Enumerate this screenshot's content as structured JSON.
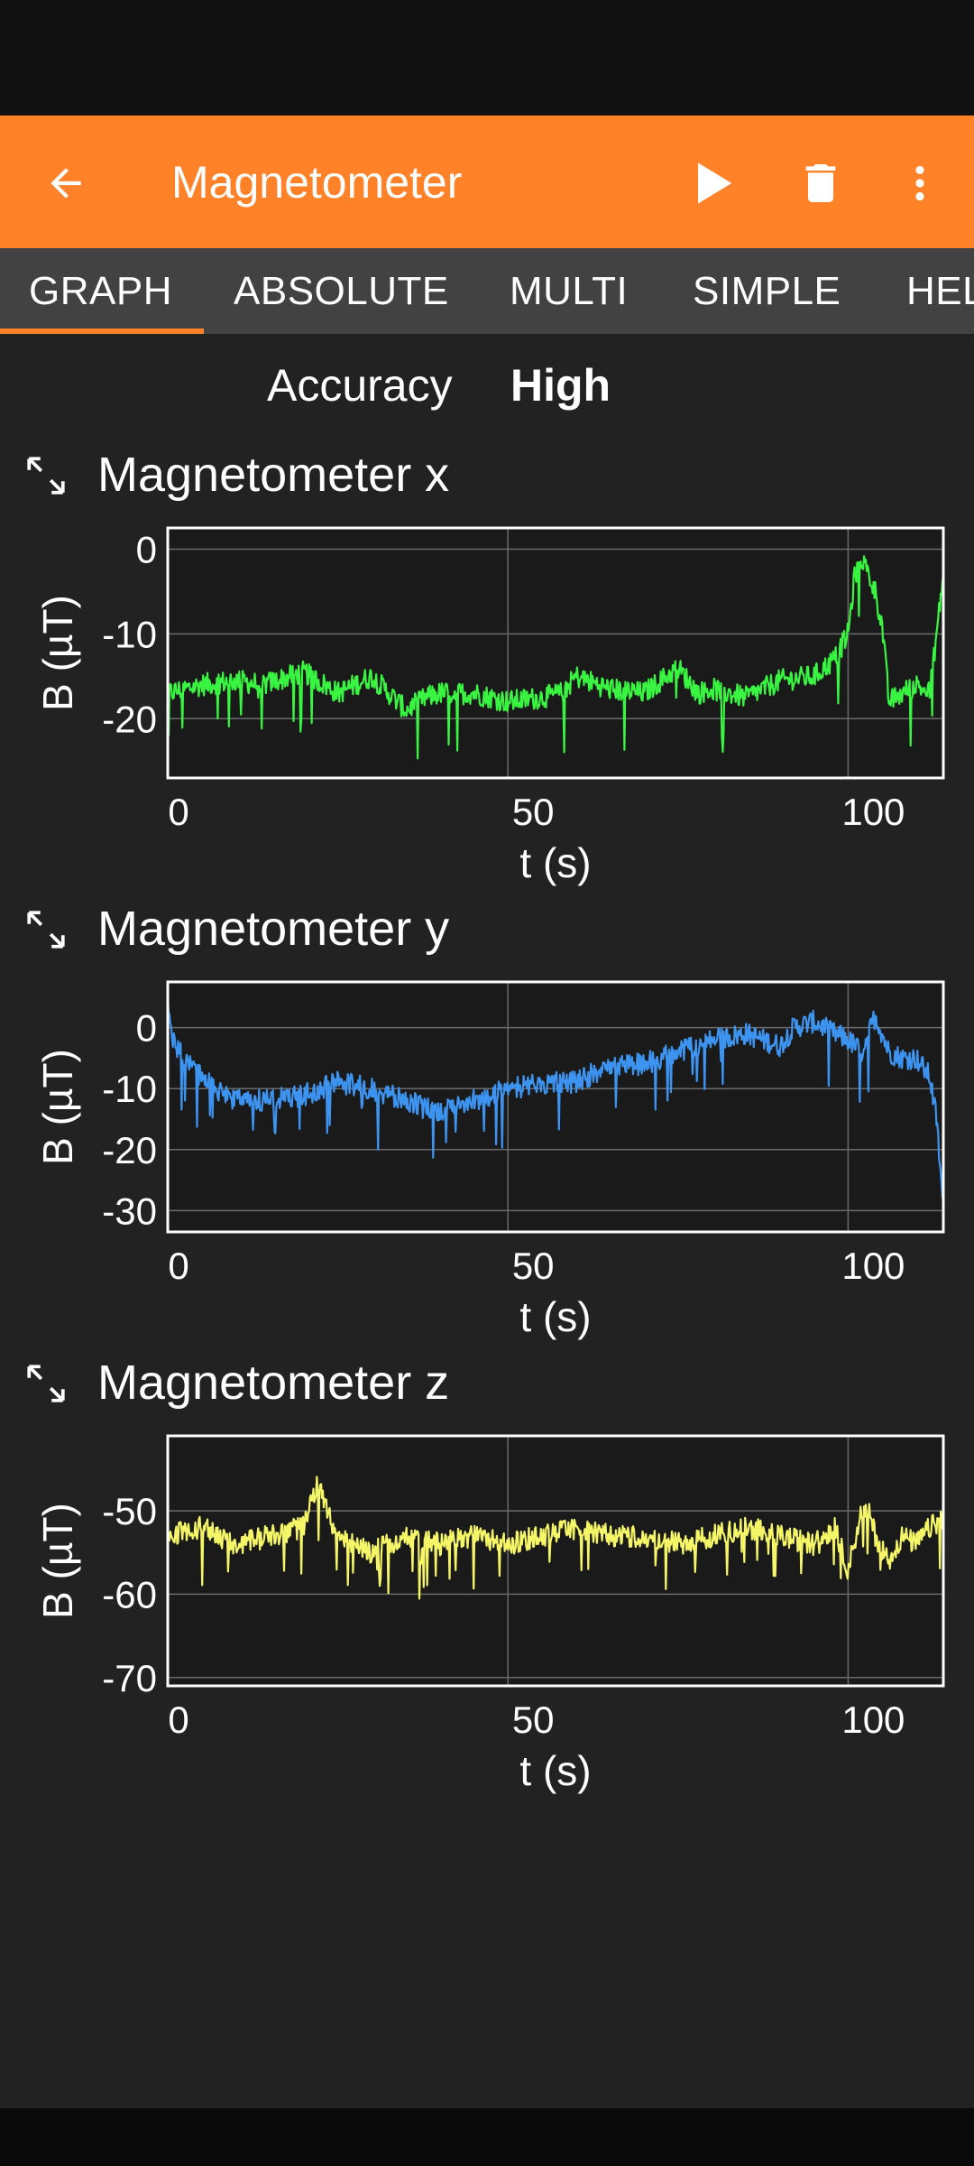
{
  "app_bar": {
    "title": "Magnetometer",
    "back_icon": "arrow-left-icon",
    "play_icon": "play-icon",
    "trash_icon": "trash-icon",
    "more_icon": "more-vert-icon",
    "color": "#ff8128"
  },
  "tabs": [
    {
      "label": "GRAPH",
      "selected": true
    },
    {
      "label": "ABSOLUTE"
    },
    {
      "label": "MULTI"
    },
    {
      "label": "SIMPLE"
    },
    {
      "label": "HEL"
    }
  ],
  "accuracy": {
    "label": "Accuracy",
    "value": "High"
  },
  "chart_data": [
    {
      "type": "line",
      "title": "Magnetometer x",
      "xlabel": "t (s)",
      "ylabel": "B (µT)",
      "xlim": [
        0,
        114
      ],
      "ylim": [
        -27,
        2.5
      ],
      "xticks": [
        0,
        50,
        100
      ],
      "yticks": [
        0,
        -10,
        -20
      ],
      "color": "#39f542",
      "grid": true,
      "series": [
        {
          "x": [
            0,
            5,
            10,
            14,
            20,
            25,
            30,
            35,
            38,
            40,
            45,
            50,
            55,
            58,
            60,
            65,
            70,
            75,
            78,
            80,
            85,
            90,
            95,
            98,
            100,
            101,
            102,
            103,
            104,
            105,
            106,
            108,
            110,
            112,
            114
          ],
          "y": [
            -17,
            -16,
            -15.5,
            -16,
            -14.5,
            -17,
            -15,
            -19,
            -17.5,
            -17,
            -17,
            -18,
            -17.5,
            -17,
            -15,
            -16.5,
            -17,
            -14,
            -17,
            -16.5,
            -17.5,
            -15.5,
            -15,
            -13,
            -10,
            -3,
            -1,
            -3,
            -5,
            -9,
            -18,
            -17,
            -16,
            -17,
            -3
          ]
        }
      ]
    },
    {
      "type": "line",
      "title": "Magnetometer y",
      "xlabel": "t (s)",
      "ylabel": "B (µT)",
      "xlim": [
        0,
        114
      ],
      "ylim": [
        -33.5,
        7.5
      ],
      "xticks": [
        0,
        50,
        100
      ],
      "yticks": [
        0,
        -10,
        -20,
        -30
      ],
      "color": "#3d94f0",
      "grid": true,
      "series": [
        {
          "x": [
            0,
            1,
            3,
            5,
            8,
            10,
            15,
            20,
            25,
            30,
            35,
            40,
            45,
            50,
            55,
            60,
            65,
            70,
            75,
            80,
            85,
            90,
            92,
            95,
            98,
            100,
            102,
            104,
            106,
            108,
            110,
            112,
            113,
            114
          ],
          "y": [
            4,
            -3,
            -6,
            -8,
            -11,
            -12,
            -12,
            -11,
            -9,
            -10,
            -12,
            -14,
            -12,
            -10,
            -9,
            -9,
            -6,
            -6,
            -4,
            -2,
            -1,
            -3,
            0,
            1,
            -1,
            -2,
            -4,
            2,
            -4,
            -5,
            -5,
            -8,
            -15,
            -30
          ]
        }
      ]
    },
    {
      "type": "line",
      "title": "Magnetometer z",
      "xlabel": "t (s)",
      "ylabel": "B (µT)",
      "xlim": [
        0,
        114
      ],
      "ylim": [
        -71,
        -41
      ],
      "xticks": [
        0,
        50,
        100
      ],
      "yticks": [
        -50,
        -60,
        -70
      ],
      "color": "#f4f567",
      "grid": true,
      "series": [
        {
          "x": [
            0,
            5,
            10,
            15,
            20,
            22,
            23,
            25,
            30,
            35,
            40,
            45,
            50,
            55,
            60,
            65,
            70,
            75,
            80,
            85,
            90,
            95,
            98,
            100,
            102,
            103,
            104,
            106,
            108,
            110,
            112,
            114
          ],
          "y": [
            -53,
            -52,
            -54,
            -53,
            -52,
            -47,
            -49,
            -53,
            -55,
            -53,
            -54,
            -53,
            -54,
            -53,
            -52,
            -53,
            -53,
            -54,
            -53,
            -52,
            -53,
            -54,
            -52,
            -57,
            -50,
            -50,
            -53,
            -56,
            -53,
            -54,
            -52,
            -51
          ]
        }
      ]
    }
  ]
}
